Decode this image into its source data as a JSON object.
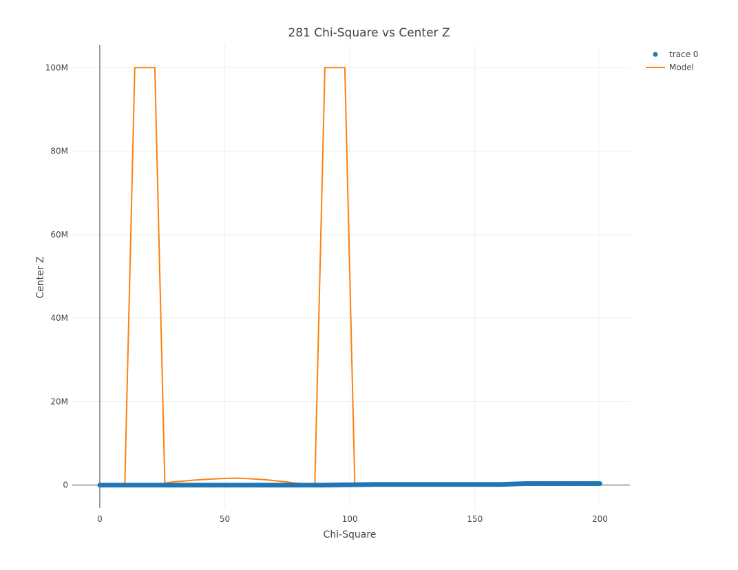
{
  "chart_data": {
    "type": "scatter",
    "title": "281 Chi-Square vs Center Z",
    "xlabel": "Chi-Square",
    "ylabel": "Center Z",
    "xlim": [
      -11,
      212
    ],
    "ylim": [
      -5500000,
      105500000
    ],
    "x_ticks": [
      0,
      50,
      100,
      150,
      200
    ],
    "x_tick_labels": [
      "0",
      "50",
      "100",
      "150",
      "200"
    ],
    "y_ticks": [
      0,
      20000000,
      40000000,
      60000000,
      80000000,
      100000000
    ],
    "y_tick_labels": [
      "0",
      "20M",
      "40M",
      "60M",
      "80M",
      "100M"
    ],
    "grid": true,
    "legend": {
      "position": "top-right",
      "entries": [
        {
          "name": "trace 0",
          "marker": "circle",
          "color": "#1f77b4"
        },
        {
          "name": "Model",
          "marker": "line",
          "color": "#ff7f0e"
        }
      ]
    },
    "series": [
      {
        "name": "trace 0",
        "mode": "markers",
        "color": "#1f77b4",
        "x_range": [
          0,
          200
        ],
        "x_step": 0.5,
        "y_profile": [
          [
            0,
            0
          ],
          [
            90,
            0
          ],
          [
            110,
            150000
          ],
          [
            160,
            150000
          ],
          [
            170,
            350000
          ],
          [
            200,
            350000
          ]
        ]
      },
      {
        "name": "Model",
        "mode": "lines",
        "color": "#ff7f0e",
        "x": [
          0,
          2,
          6,
          10,
          14,
          18,
          22,
          26,
          30,
          34,
          38,
          42,
          46,
          50,
          54,
          58,
          62,
          66,
          70,
          74,
          78,
          82,
          86,
          90,
          94,
          98,
          102
        ],
        "y": [
          0,
          2000,
          20000,
          150000,
          100000000,
          100000000,
          100000000,
          500000,
          800000,
          1000000,
          1200000,
          1350000,
          1500000,
          1600000,
          1650000,
          1600000,
          1450000,
          1300000,
          1050000,
          800000,
          500000,
          250000,
          100000,
          100000000,
          100000000,
          100000000,
          0
        ]
      }
    ]
  }
}
